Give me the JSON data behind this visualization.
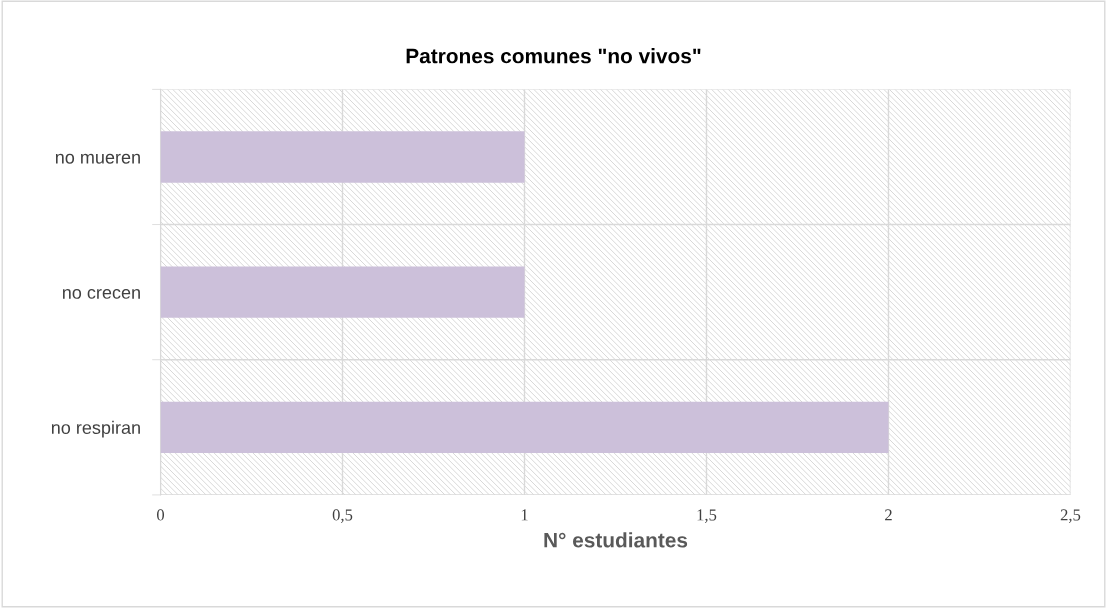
{
  "chart_data": {
    "type": "bar",
    "orientation": "horizontal",
    "title": "Patrones comunes \"no vivos\"",
    "xlabel": "N° estudiantes",
    "categories": [
      "no mueren",
      "no crecen",
      "no respiran"
    ],
    "values": [
      1,
      1,
      2
    ],
    "color": "#ccc0da",
    "xlim": [
      0,
      2.5
    ],
    "xticks": [
      0,
      {
        "value": 0.5,
        "label": "0,5"
      },
      1,
      {
        "value": 1.5,
        "label": "1,5"
      },
      2,
      {
        "value": 2.5,
        "label": "2,5"
      }
    ],
    "grid": true
  }
}
